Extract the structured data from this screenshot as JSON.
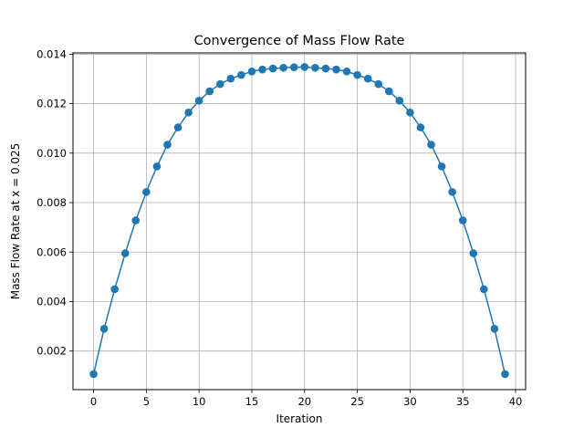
{
  "chart_data": {
    "type": "line",
    "title": "Convergence of Mass Flow Rate",
    "xlabel": "Iteration",
    "ylabel": "Mass Flow Rate at x = 0.025",
    "xlim": [
      -1.95,
      40.95
    ],
    "ylim": [
      0.00044,
      0.01405
    ],
    "xticks": [
      0,
      5,
      10,
      15,
      20,
      25,
      30,
      35,
      40
    ],
    "xtick_labels": [
      "0",
      "5",
      "10",
      "15",
      "20",
      "25",
      "30",
      "35",
      "40"
    ],
    "yticks": [
      0.002,
      0.004,
      0.006,
      0.008,
      0.01,
      0.012,
      0.014
    ],
    "ytick_labels": [
      "0.002",
      "0.004",
      "0.006",
      "0.008",
      "0.010",
      "0.012",
      "0.014"
    ],
    "grid": true,
    "legend": "none",
    "color": "#1f77b4",
    "marker": "circle",
    "series": [
      {
        "x": [
          0,
          1,
          2,
          3,
          4,
          5,
          6,
          7,
          8,
          9,
          10,
          11,
          12,
          13,
          14,
          15,
          16,
          17,
          18,
          19,
          20,
          21,
          22,
          23,
          24,
          25,
          26,
          27,
          28,
          29,
          30,
          31,
          32,
          33,
          34,
          35,
          36,
          37,
          38,
          39
        ],
        "values": [
          0.00107,
          0.0029,
          0.0045,
          0.00595,
          0.00728,
          0.00843,
          0.00946,
          0.01034,
          0.01104,
          0.01164,
          0.01212,
          0.0125,
          0.01279,
          0.01301,
          0.01316,
          0.0133,
          0.01338,
          0.01342,
          0.01345,
          0.01347,
          0.01348,
          0.01345,
          0.01342,
          0.01338,
          0.0133,
          0.01316,
          0.01301,
          0.01279,
          0.0125,
          0.01212,
          0.01164,
          0.01104,
          0.01034,
          0.00946,
          0.00843,
          0.00728,
          0.00595,
          0.0045,
          0.0029,
          0.00107
        ]
      }
    ]
  }
}
